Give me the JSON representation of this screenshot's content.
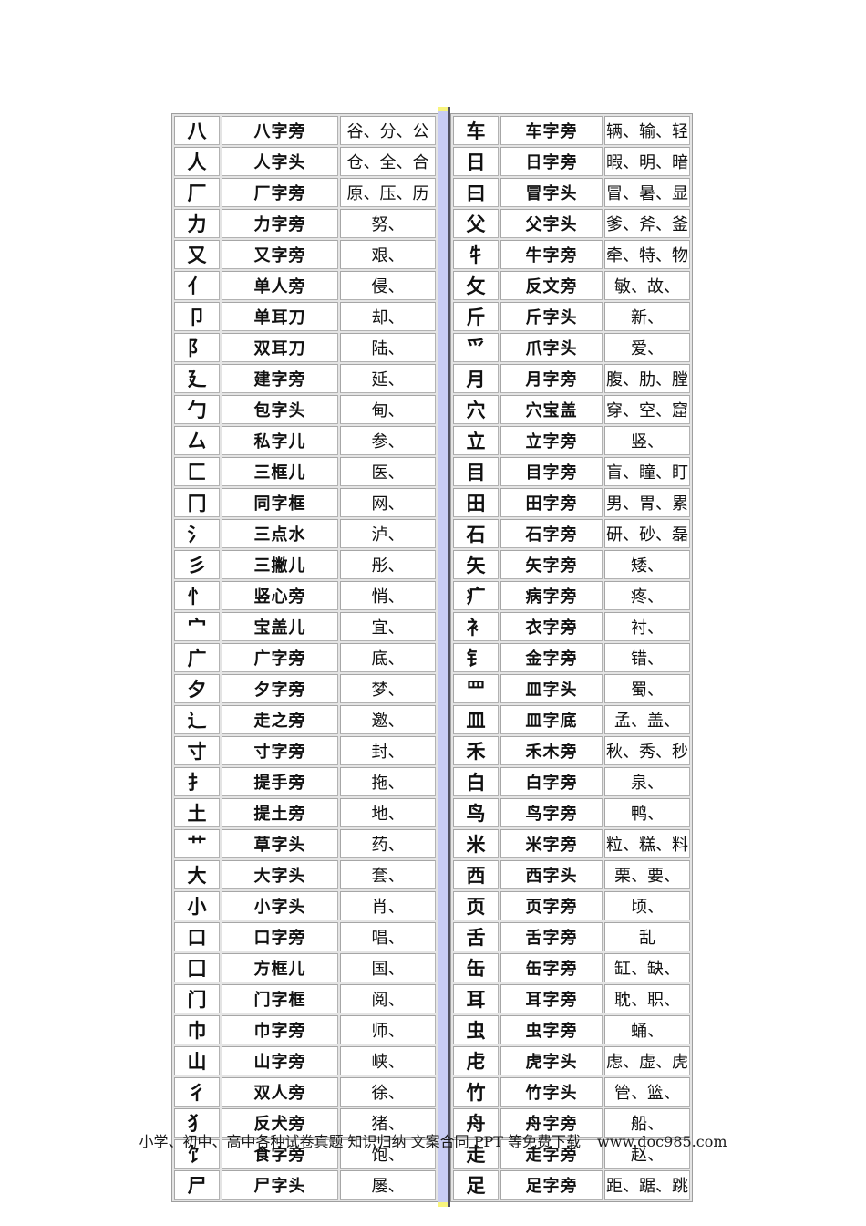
{
  "footer": {
    "text": "小学、初中、高中各种试卷真题 知识归纳 文案合同 PPT 等免费下载",
    "url": "www.doc985.com"
  },
  "colors": {
    "divider_strip": "#c8ccf3",
    "divider_edge": "#50505f",
    "divider_cap": "#f8f47d",
    "cell_border": "#b2b2b2",
    "table_gap": "#e4e4e4"
  },
  "tables": {
    "left": {
      "rows": [
        {
          "radical": "八",
          "name": "八字旁",
          "examples": "谷、分、公"
        },
        {
          "radical": "人",
          "name": "人字头",
          "examples": "仓、全、合"
        },
        {
          "radical": "厂",
          "name": "厂字旁",
          "examples": "原、压、历"
        },
        {
          "radical": "力",
          "name": "力字旁",
          "examples": "努、"
        },
        {
          "radical": "又",
          "name": "又字旁",
          "examples": "艰、"
        },
        {
          "radical": "亻",
          "name": "单人旁",
          "examples": "侵、"
        },
        {
          "radical": "卩",
          "name": "单耳刀",
          "examples": "却、"
        },
        {
          "radical": "阝",
          "name": "双耳刀",
          "examples": "陆、"
        },
        {
          "radical": "廴",
          "name": "建字旁",
          "examples": "延、"
        },
        {
          "radical": "勹",
          "name": "包字头",
          "examples": "甸、"
        },
        {
          "radical": "厶",
          "name": "私字儿",
          "examples": "参、"
        },
        {
          "radical": "匚",
          "name": "三框儿",
          "examples": "医、"
        },
        {
          "radical": "冂",
          "name": "同字框",
          "examples": "网、"
        },
        {
          "radical": "氵",
          "name": "三点水",
          "examples": "泸、"
        },
        {
          "radical": "彡",
          "name": "三撇儿",
          "examples": "彤、"
        },
        {
          "radical": "忄",
          "name": "竖心旁",
          "examples": "悄、"
        },
        {
          "radical": "宀",
          "name": "宝盖儿",
          "examples": "宜、"
        },
        {
          "radical": "广",
          "name": "广字旁",
          "examples": "底、"
        },
        {
          "radical": "夕",
          "name": "夕字旁",
          "examples": "梦、"
        },
        {
          "radical": "辶",
          "name": "走之旁",
          "examples": "邀、"
        },
        {
          "radical": "寸",
          "name": "寸字旁",
          "examples": "封、"
        },
        {
          "radical": "扌",
          "name": "提手旁",
          "examples": "拖、"
        },
        {
          "radical": "土",
          "name": "提土旁",
          "examples": "地、"
        },
        {
          "radical": "艹",
          "name": "草字头",
          "examples": "药、"
        },
        {
          "radical": "大",
          "name": "大字头",
          "examples": "套、"
        },
        {
          "radical": "小",
          "name": "小字头",
          "examples": "肖、"
        },
        {
          "radical": "口",
          "name": "口字旁",
          "examples": "唱、"
        },
        {
          "radical": "囗",
          "name": "方框儿",
          "examples": "国、"
        },
        {
          "radical": "门",
          "name": "门字框",
          "examples": "阅、"
        },
        {
          "radical": "巾",
          "name": "巾字旁",
          "examples": "师、"
        },
        {
          "radical": "山",
          "name": "山字旁",
          "examples": "峡、"
        },
        {
          "radical": "彳",
          "name": "双人旁",
          "examples": "徐、"
        },
        {
          "radical": "犭",
          "name": "反犬旁",
          "examples": "猪、"
        },
        {
          "radical": "饣",
          "name": "食字旁",
          "examples": "饱、"
        },
        {
          "radical": "尸",
          "name": "尸字头",
          "examples": "屡、"
        }
      ]
    },
    "right": {
      "rows": [
        {
          "radical": "车",
          "name": "车字旁",
          "examples": "辆、输、轻"
        },
        {
          "radical": "日",
          "name": "日字旁",
          "examples": "暇、明、暗"
        },
        {
          "radical": "曰",
          "name": "冒字头",
          "examples": "冒、暑、显"
        },
        {
          "radical": "父",
          "name": "父字头",
          "examples": "爹、斧、釜"
        },
        {
          "radical": "牜",
          "name": "牛字旁",
          "examples": "牵、特、物"
        },
        {
          "radical": "攵",
          "name": "反文旁",
          "examples": "敏、故、"
        },
        {
          "radical": "斤",
          "name": "斤字头",
          "examples": "新、"
        },
        {
          "radical": "爫",
          "name": "爪字头",
          "examples": "爱、"
        },
        {
          "radical": "月",
          "name": "月字旁",
          "examples": "腹、肋、膛"
        },
        {
          "radical": "穴",
          "name": "穴宝盖",
          "examples": "穿、空、窟"
        },
        {
          "radical": "立",
          "name": "立字旁",
          "examples": "竖、"
        },
        {
          "radical": "目",
          "name": "目字旁",
          "examples": "盲、瞳、盯"
        },
        {
          "radical": "田",
          "name": "田字旁",
          "examples": "男、胃、累"
        },
        {
          "radical": "石",
          "name": "石字旁",
          "examples": "研、砂、磊"
        },
        {
          "radical": "矢",
          "name": "矢字旁",
          "examples": "矮、"
        },
        {
          "radical": "疒",
          "name": "病字旁",
          "examples": "疼、"
        },
        {
          "radical": "衤",
          "name": "衣字旁",
          "examples": "衬、"
        },
        {
          "radical": "钅",
          "name": "金字旁",
          "examples": "错、"
        },
        {
          "radical": "罒",
          "name": "皿字头",
          "examples": "蜀、"
        },
        {
          "radical": "皿",
          "name": "皿字底",
          "examples": "孟、盖、"
        },
        {
          "radical": "禾",
          "name": "禾木旁",
          "examples": "秋、秀、秒"
        },
        {
          "radical": "白",
          "name": "白字旁",
          "examples": "泉、"
        },
        {
          "radical": "鸟",
          "name": "鸟字旁",
          "examples": "鸭、"
        },
        {
          "radical": "米",
          "name": "米字旁",
          "examples": "粒、糕、料"
        },
        {
          "radical": "西",
          "name": "西字头",
          "examples": "栗、要、"
        },
        {
          "radical": "页",
          "name": "页字旁",
          "examples": "顷、"
        },
        {
          "radical": "舌",
          "name": "舌字旁",
          "examples": "乱"
        },
        {
          "radical": "缶",
          "name": "缶字旁",
          "examples": "缸、缺、"
        },
        {
          "radical": "耳",
          "name": "耳字旁",
          "examples": "耽、职、"
        },
        {
          "radical": "虫",
          "name": "虫字旁",
          "examples": "蛹、"
        },
        {
          "radical": "虍",
          "name": "虎字头",
          "examples": "虑、虚、虎"
        },
        {
          "radical": "竹",
          "name": "竹字头",
          "examples": "管、篮、"
        },
        {
          "radical": "舟",
          "name": "舟字旁",
          "examples": "船、"
        },
        {
          "radical": "走",
          "name": "走字旁",
          "examples": "赵、"
        },
        {
          "radical": "足",
          "name": "足字旁",
          "examples": "距、踞、跳"
        }
      ]
    }
  }
}
